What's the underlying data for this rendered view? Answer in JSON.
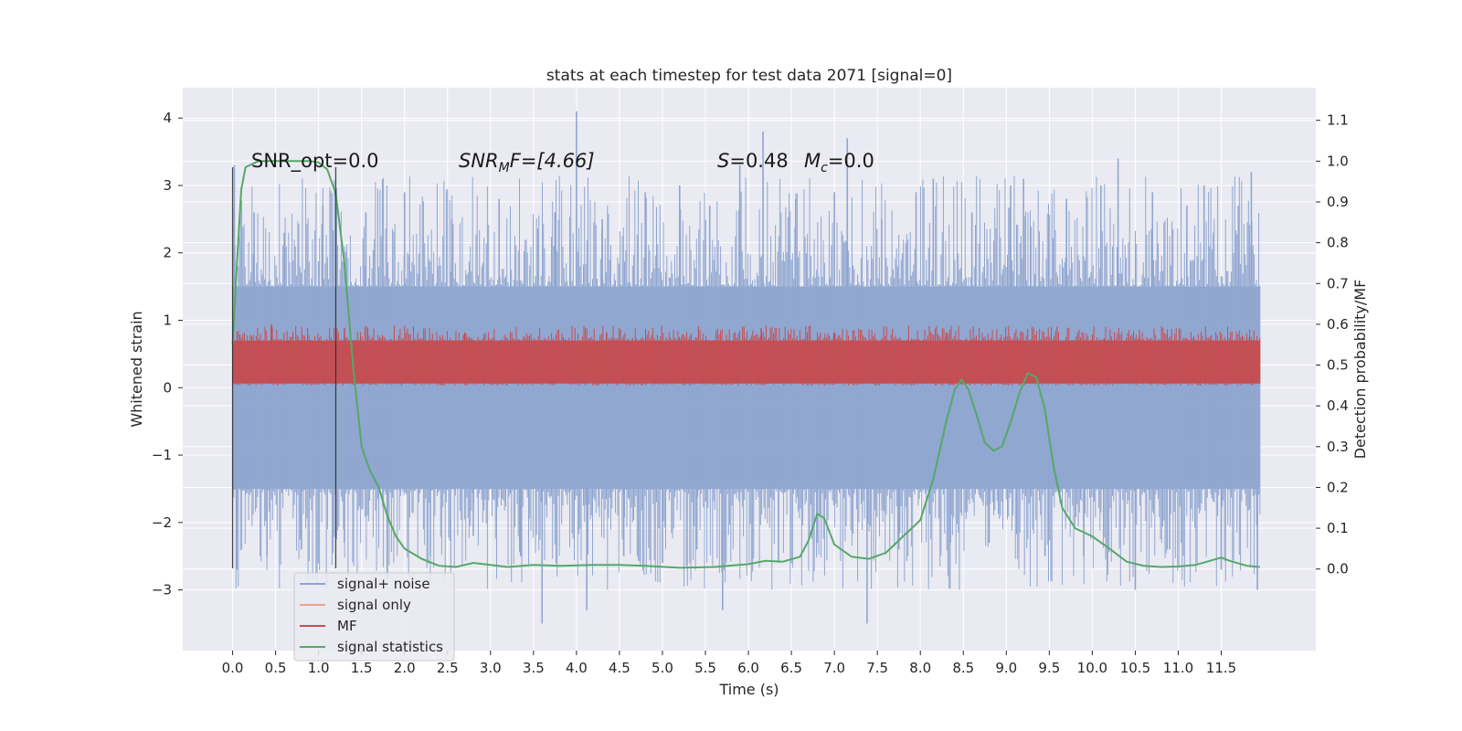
{
  "chart_data": {
    "type": "line",
    "title": "stats at each timestep for test data 2071 [signal=0]",
    "xlabel": "Time (s)",
    "ylabel_left": "Whitened strain",
    "ylabel_right": "Detection probability/MF",
    "xlim": [
      -0.58,
      12.6
    ],
    "ylim_left": [
      -3.9,
      4.45
    ],
    "ylim_right": [
      -0.2,
      1.18
    ],
    "x_ticks": [
      "0.0",
      "0.5",
      "1.0",
      "1.5",
      "2.0",
      "2.5",
      "3.0",
      "3.5",
      "4.0",
      "4.5",
      "5.0",
      "5.5",
      "6.0",
      "6.5",
      "7.0",
      "7.5",
      "8.0",
      "8.5",
      "9.0",
      "9.5",
      "10.0",
      "10.5",
      "11.0",
      "11.5"
    ],
    "y_left_ticks": [
      "4",
      "3",
      "2",
      "1",
      "0",
      "−1",
      "−2",
      "−3"
    ],
    "y_right_ticks": [
      "1.1",
      "1.0",
      "0.9",
      "0.8",
      "0.7",
      "0.6",
      "0.5",
      "0.4",
      "0.3",
      "0.2",
      "0.1",
      "0.0"
    ],
    "grid": true,
    "legend_position": "lower-left",
    "annotations": {
      "snr_opt": "SNR_opt=0.0",
      "snr_mf_name": "SNR",
      "snr_mf_sub": "M",
      "snr_mf_rest": "F=[4.66]",
      "s_name": "S",
      "s_value": "=0.48",
      "mc_name": "M",
      "mc_sub": "c",
      "mc_value": "=0.0"
    },
    "markers": [
      0.0,
      1.2
    ],
    "series": [
      {
        "name": "signal+ noise",
        "axis": "left",
        "color": "#8fa6d0",
        "band": {
          "x_range": [
            0.0,
            11.95
          ],
          "low": -1.5,
          "high": 1.5
        },
        "spikes": [
          {
            "x": 0.02,
            "y": 3.3
          },
          {
            "x": 0.05,
            "y": -2.7
          },
          {
            "x": 0.25,
            "y": 2.6
          },
          {
            "x": 0.4,
            "y": -2.5
          },
          {
            "x": 0.6,
            "y": 2.3
          },
          {
            "x": 0.8,
            "y": -2.4
          },
          {
            "x": 1.05,
            "y": 2.7
          },
          {
            "x": 1.3,
            "y": -2.3
          },
          {
            "x": 1.55,
            "y": 2.6
          },
          {
            "x": 1.8,
            "y": -2.8
          },
          {
            "x": 2.0,
            "y": 2.9
          },
          {
            "x": 2.3,
            "y": -2.5
          },
          {
            "x": 2.55,
            "y": 2.5
          },
          {
            "x": 2.8,
            "y": -2.2
          },
          {
            "x": 3.1,
            "y": 2.8
          },
          {
            "x": 3.35,
            "y": -2.5
          },
          {
            "x": 3.6,
            "y": -3.5
          },
          {
            "x": 3.75,
            "y": 2.6
          },
          {
            "x": 4.0,
            "y": 4.1
          },
          {
            "x": 4.12,
            "y": -3.3
          },
          {
            "x": 4.3,
            "y": 2.5
          },
          {
            "x": 4.55,
            "y": -2.5
          },
          {
            "x": 4.8,
            "y": 2.9
          },
          {
            "x": 5.0,
            "y": -2.6
          },
          {
            "x": 5.2,
            "y": 3.0
          },
          {
            "x": 5.4,
            "y": -2.4
          },
          {
            "x": 5.55,
            "y": 2.7
          },
          {
            "x": 5.7,
            "y": -3.3
          },
          {
            "x": 5.9,
            "y": 3.3
          },
          {
            "x": 6.17,
            "y": 3.8
          },
          {
            "x": 6.35,
            "y": -2.6
          },
          {
            "x": 6.55,
            "y": 2.8
          },
          {
            "x": 6.8,
            "y": -2.3
          },
          {
            "x": 7.0,
            "y": 2.9
          },
          {
            "x": 7.15,
            "y": 3.7
          },
          {
            "x": 7.38,
            "y": -3.5
          },
          {
            "x": 7.55,
            "y": 2.5
          },
          {
            "x": 7.75,
            "y": -2.4
          },
          {
            "x": 7.95,
            "y": 2.9
          },
          {
            "x": 8.15,
            "y": 3.1
          },
          {
            "x": 8.35,
            "y": -2.3
          },
          {
            "x": 8.6,
            "y": 2.6
          },
          {
            "x": 8.8,
            "y": -2.3
          },
          {
            "x": 9.05,
            "y": 3.0
          },
          {
            "x": 9.2,
            "y": 3.1
          },
          {
            "x": 9.45,
            "y": -2.5
          },
          {
            "x": 9.7,
            "y": 2.8
          },
          {
            "x": 9.9,
            "y": -2.5
          },
          {
            "x": 10.1,
            "y": 3.0
          },
          {
            "x": 10.3,
            "y": 3.4
          },
          {
            "x": 10.5,
            "y": -3.0
          },
          {
            "x": 10.7,
            "y": 2.9
          },
          {
            "x": 10.9,
            "y": -2.4
          },
          {
            "x": 11.1,
            "y": 2.7
          },
          {
            "x": 11.3,
            "y": 3.0
          },
          {
            "x": 11.5,
            "y": -2.7
          },
          {
            "x": 11.7,
            "y": 2.7
          },
          {
            "x": 11.85,
            "y": 3.2
          },
          {
            "x": 11.92,
            "y": -3.0
          }
        ]
      },
      {
        "name": "signal only",
        "axis": "left",
        "color": "#e8a58c",
        "points": []
      },
      {
        "name": "MF",
        "axis": "right",
        "color": "#c44e52",
        "band": {
          "x_range": [
            0.0,
            11.95
          ],
          "low": 0.455,
          "high": 0.56
        },
        "spikes": [
          {
            "x": 0.45,
            "y": 0.6
          },
          {
            "x": 1.3,
            "y": 0.59
          },
          {
            "x": 2.7,
            "y": 0.58
          },
          {
            "x": 4.35,
            "y": 0.58
          },
          {
            "x": 6.15,
            "y": 0.59
          },
          {
            "x": 7.0,
            "y": 0.58
          },
          {
            "x": 8.3,
            "y": 0.58
          },
          {
            "x": 10.55,
            "y": 0.57
          }
        ]
      },
      {
        "name": "signal statistics",
        "axis": "right",
        "color": "#55a868",
        "points": [
          [
            0.0,
            0.55
          ],
          [
            0.05,
            0.75
          ],
          [
            0.1,
            0.93
          ],
          [
            0.15,
            0.985
          ],
          [
            0.3,
            1.0
          ],
          [
            0.5,
            1.0
          ],
          [
            0.7,
            1.0
          ],
          [
            0.9,
            1.0
          ],
          [
            1.0,
            0.997
          ],
          [
            1.1,
            0.98
          ],
          [
            1.2,
            0.92
          ],
          [
            1.3,
            0.75
          ],
          [
            1.4,
            0.5
          ],
          [
            1.5,
            0.3
          ],
          [
            1.6,
            0.24
          ],
          [
            1.7,
            0.2
          ],
          [
            1.8,
            0.13
          ],
          [
            1.9,
            0.08
          ],
          [
            2.0,
            0.05
          ],
          [
            2.2,
            0.025
          ],
          [
            2.4,
            0.008
          ],
          [
            2.6,
            0.005
          ],
          [
            2.8,
            0.015
          ],
          [
            3.0,
            0.01
          ],
          [
            3.2,
            0.005
          ],
          [
            3.5,
            0.01
          ],
          [
            3.8,
            0.008
          ],
          [
            4.2,
            0.01
          ],
          [
            4.5,
            0.01
          ],
          [
            4.8,
            0.008
          ],
          [
            5.2,
            0.003
          ],
          [
            5.6,
            0.005
          ],
          [
            6.0,
            0.012
          ],
          [
            6.2,
            0.02
          ],
          [
            6.4,
            0.018
          ],
          [
            6.6,
            0.03
          ],
          [
            6.7,
            0.07
          ],
          [
            6.8,
            0.135
          ],
          [
            6.88,
            0.125
          ],
          [
            7.0,
            0.06
          ],
          [
            7.2,
            0.03
          ],
          [
            7.4,
            0.025
          ],
          [
            7.6,
            0.04
          ],
          [
            7.8,
            0.08
          ],
          [
            8.0,
            0.12
          ],
          [
            8.15,
            0.22
          ],
          [
            8.3,
            0.36
          ],
          [
            8.4,
            0.44
          ],
          [
            8.48,
            0.465
          ],
          [
            8.56,
            0.44
          ],
          [
            8.65,
            0.38
          ],
          [
            8.75,
            0.31
          ],
          [
            8.85,
            0.29
          ],
          [
            8.95,
            0.3
          ],
          [
            9.05,
            0.36
          ],
          [
            9.15,
            0.43
          ],
          [
            9.25,
            0.48
          ],
          [
            9.35,
            0.47
          ],
          [
            9.45,
            0.39
          ],
          [
            9.55,
            0.25
          ],
          [
            9.65,
            0.15
          ],
          [
            9.8,
            0.1
          ],
          [
            10.0,
            0.08
          ],
          [
            10.2,
            0.05
          ],
          [
            10.4,
            0.018
          ],
          [
            10.6,
            0.008
          ],
          [
            10.8,
            0.005
          ],
          [
            11.0,
            0.006
          ],
          [
            11.2,
            0.01
          ],
          [
            11.4,
            0.022
          ],
          [
            11.5,
            0.028
          ],
          [
            11.6,
            0.02
          ],
          [
            11.8,
            0.008
          ],
          [
            11.95,
            0.005
          ]
        ]
      }
    ]
  }
}
